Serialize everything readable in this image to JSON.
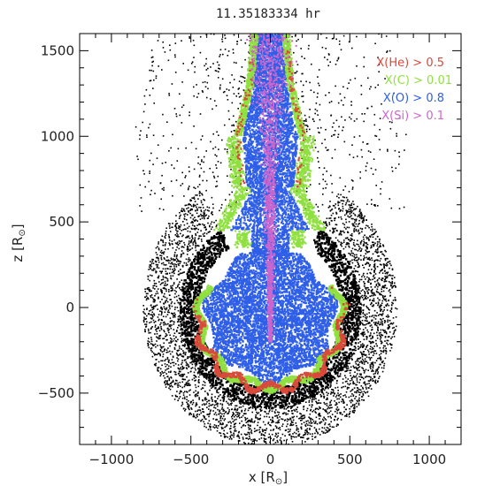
{
  "chart_data": {
    "type": "scatter",
    "title": "11.35183334 hr",
    "xlabel": "x [R",
    "ylabel": "z [R",
    "unit_symbol": "⊙",
    "xlim": [
      -1200,
      1200
    ],
    "ylim": [
      -800,
      1600
    ],
    "xticks": [
      -1000,
      -500,
      0,
      500,
      1000
    ],
    "yticks": [
      -500,
      0,
      500,
      1000,
      1500
    ],
    "xtick_labels": [
      "−1000",
      "−500",
      "0",
      "500",
      "1000"
    ],
    "ytick_labels": [
      "−500",
      "0",
      "500",
      "1000",
      "1500"
    ],
    "grid": false,
    "legend_position": "top-right",
    "series": [
      {
        "name": "X(He) > 0.5",
        "color": "#d94a3a"
      },
      {
        "name": "X(C) > 0.01",
        "color": "#8fe040"
      },
      {
        "name": "X(O) > 0.8",
        "color": "#2f5fe8"
      },
      {
        "name": "X(Si) > 0.1",
        "color": "#cc66cc"
      }
    ],
    "envelope_color": "#000000",
    "shell_outer_radius": 800,
    "shell_inner_radius": 570,
    "core_radius": 450,
    "core_center_y": -50
  }
}
